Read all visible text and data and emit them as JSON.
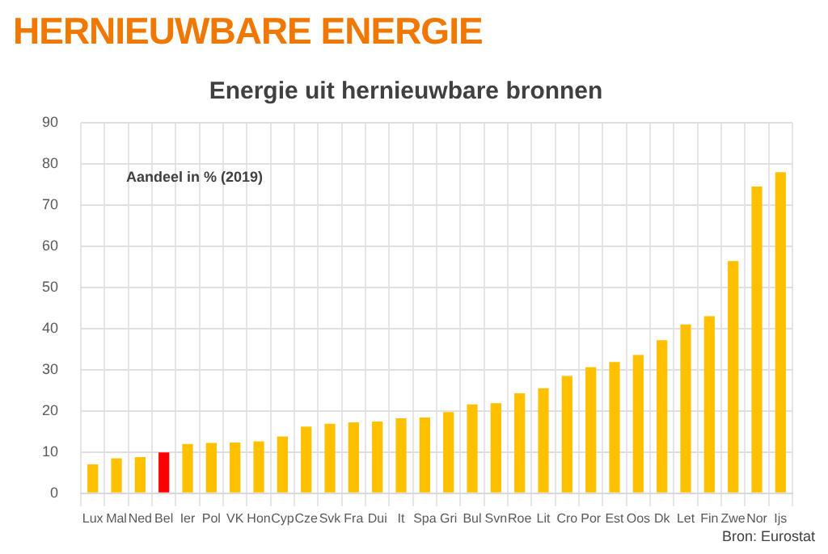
{
  "chart_data": {
    "type": "bar",
    "title": "HERNIEUWBARE ENERGIE",
    "subtitle": "Energie uit hernieuwbare bronnen",
    "annotations": [
      "Aandeel in % (2019)",
      "Bron: Eurostat"
    ],
    "categories": [
      "Lux",
      "Mal",
      "Ned",
      "Bel",
      "Ier",
      "Pol",
      "VK",
      "Hon",
      "Cyp",
      "Cze",
      "Svk",
      "Fra",
      "Dui",
      "It",
      "Spa",
      "Gri",
      "Bul",
      "Svn",
      "Roe",
      "Lit",
      "Cro",
      "Por",
      "Est",
      "Oos",
      "Dk",
      "Let",
      "Fin",
      "Zwe",
      "Nor",
      "Ijs"
    ],
    "values": [
      7,
      8.5,
      8.8,
      9.9,
      12,
      12.2,
      12.3,
      12.6,
      13.8,
      16.2,
      16.9,
      17.2,
      17.4,
      18.2,
      18.4,
      19.7,
      21.6,
      21.9,
      24.3,
      25.5,
      28.5,
      30.6,
      31.9,
      33.6,
      37.2,
      41,
      43,
      56.4,
      74.5,
      78
    ],
    "colors": [
      "#ffc000",
      "#ffc000",
      "#ffc000",
      "#ff0000",
      "#ffc000",
      "#ffc000",
      "#ffc000",
      "#ffc000",
      "#ffc000",
      "#ffc000",
      "#ffc000",
      "#ffc000",
      "#ffc000",
      "#ffc000",
      "#ffc000",
      "#ffc000",
      "#ffc000",
      "#ffc000",
      "#ffc000",
      "#ffc000",
      "#ffc000",
      "#ffc000",
      "#ffc000",
      "#ffc000",
      "#ffc000",
      "#ffc000",
      "#ffc000",
      "#ffc000",
      "#ffc000",
      "#ffc000"
    ],
    "ylim": [
      0,
      90
    ],
    "yticks": [
      0,
      10,
      20,
      30,
      40,
      50,
      60,
      70,
      80,
      90
    ],
    "grid": true
  }
}
